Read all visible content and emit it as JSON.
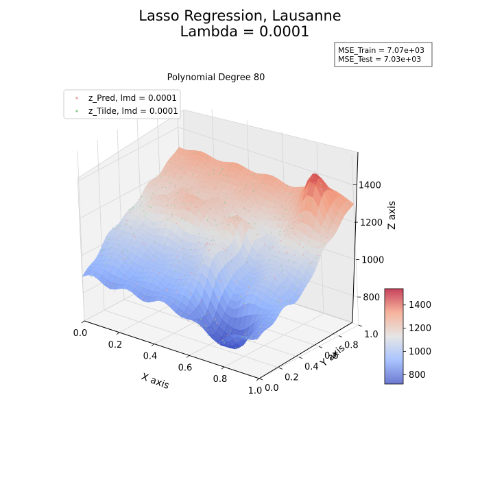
{
  "chart_data": {
    "type": "surface3d",
    "title_line1": "Lasso Regression, Lausanne",
    "title_line2": "Lambda = 0.0001",
    "subtitle": "Polynomial Degree 80",
    "mse_train": "MSE_Train = 7.07e+03",
    "mse_test": "MSE_Test = 7.03e+03",
    "xlabel": "X axis",
    "ylabel": "Y axis",
    "zlabel": "Z axis",
    "xlim": [
      0,
      1
    ],
    "ylim": [
      0,
      1
    ],
    "zlim": [
      650,
      1560
    ],
    "x_ticks": [
      "0.0",
      "0.2",
      "0.4",
      "0.6",
      "0.8",
      "1.0"
    ],
    "y_ticks": [
      "0.0",
      "0.2",
      "0.4",
      "0.6",
      "0.8",
      "1.0"
    ],
    "z_ticks": [
      "800",
      "1000",
      "1200",
      "1400"
    ],
    "legend": [
      {
        "label": "z_Pred, lmd = 0.0001",
        "color": "#e8a0a0"
      },
      {
        "label": "z_Tilde, lmd = 0.0001",
        "color": "#8cc98c"
      }
    ],
    "colorbar": {
      "colormap": "coolwarm",
      "range": [
        720,
        1540
      ],
      "ticks": [
        "800",
        "1000",
        "1200",
        "1400"
      ]
    },
    "grid": true,
    "legend_placement": "top-left",
    "colors": {
      "low": "#3b4cc0",
      "mid": "#dddddd",
      "high": "#b40426"
    }
  }
}
